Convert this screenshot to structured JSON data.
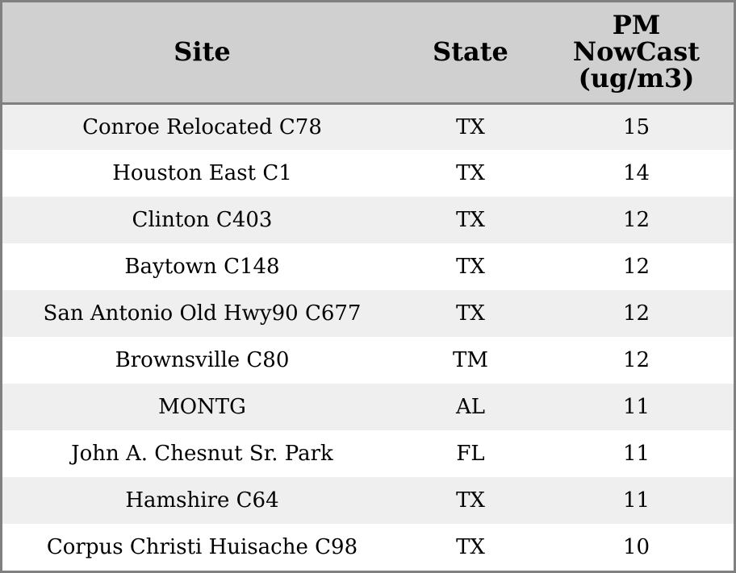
{
  "table": {
    "headers": {
      "site": "Site",
      "state": "State",
      "pm_line1": "PM",
      "pm_line2": "NowCast",
      "pm_line3": "(ug/m3)"
    },
    "rows": [
      {
        "site": "Conroe Relocated C78",
        "state": "TX",
        "pm": "15"
      },
      {
        "site": "Houston East C1",
        "state": "TX",
        "pm": "14"
      },
      {
        "site": "Clinton C403",
        "state": "TX",
        "pm": "12"
      },
      {
        "site": "Baytown C148",
        "state": "TX",
        "pm": "12"
      },
      {
        "site": "San Antonio Old Hwy90 C677",
        "state": "TX",
        "pm": "12"
      },
      {
        "site": "Brownsville C80",
        "state": "TM",
        "pm": "12"
      },
      {
        "site": "MONTG",
        "state": "AL",
        "pm": "11"
      },
      {
        "site": "John A. Chesnut Sr. Park",
        "state": "FL",
        "pm": "11"
      },
      {
        "site": "Hamshire C64",
        "state": "TX",
        "pm": "11"
      },
      {
        "site": "Corpus Christi Huisache C98",
        "state": "TX",
        "pm": "10"
      }
    ]
  },
  "colors": {
    "header_bg": "#d0d0d0",
    "row_alt_bg": "#efefef",
    "border": "#808080"
  }
}
